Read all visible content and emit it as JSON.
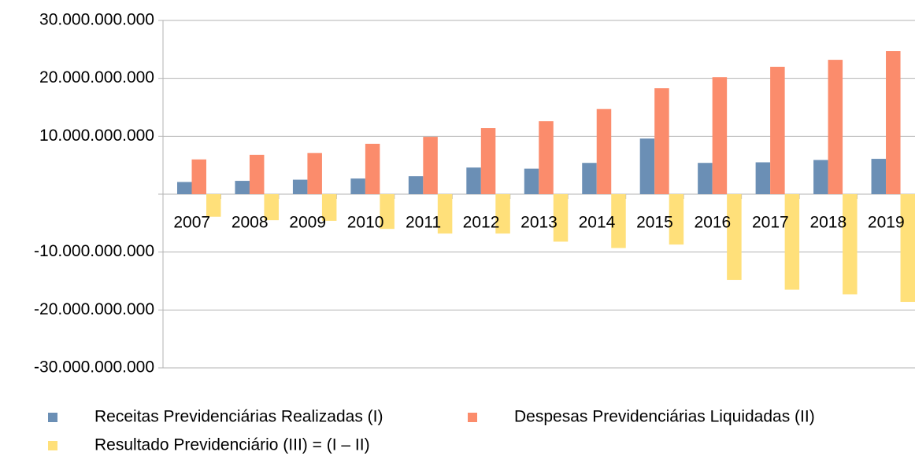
{
  "chart_data": {
    "type": "bar",
    "categories": [
      "2007",
      "2008",
      "2009",
      "2010",
      "2011",
      "2012",
      "2013",
      "2014",
      "2015",
      "2016",
      "2017",
      "2018",
      "2019"
    ],
    "series": [
      {
        "name": "Receitas Previdenciárias Realizadas (I)",
        "color": "#6b8fb5",
        "values": [
          2100000000,
          2300000000,
          2500000000,
          2700000000,
          3100000000,
          4600000000,
          4400000000,
          5400000000,
          9600000000,
          5400000000,
          5500000000,
          5900000000,
          6100000000
        ]
      },
      {
        "name": "Despesas Previdenciárias Liquidadas (II)",
        "color": "#fb8c6c",
        "values": [
          6000000000,
          6800000000,
          7100000000,
          8700000000,
          9900000000,
          11400000000,
          12600000000,
          14700000000,
          18300000000,
          20200000000,
          22000000000,
          23200000000,
          24700000000
        ]
      },
      {
        "name": "Resultado Previdenciário (III) = (I – II)",
        "color": "#ffe07a",
        "values": [
          -3900000000,
          -4500000000,
          -4600000000,
          -6000000000,
          -6800000000,
          -6800000000,
          -8200000000,
          -9300000000,
          -8700000000,
          -14800000000,
          -16500000000,
          -17300000000,
          -18600000000
        ]
      }
    ],
    "ylim": [
      -30000000000,
      30000000000
    ],
    "yticks": [
      {
        "value": -30000000000,
        "label": "-30.000.000.000"
      },
      {
        "value": -20000000000,
        "label": "-20.000.000.000"
      },
      {
        "value": -10000000000,
        "label": "-10.000.000.000"
      },
      {
        "value": 10000000000,
        "label": "10.000.000.000"
      },
      {
        "value": 20000000000,
        "label": "20.000.000.000"
      },
      {
        "value": 30000000000,
        "label": "30.000.000.000"
      }
    ],
    "grid": true
  }
}
